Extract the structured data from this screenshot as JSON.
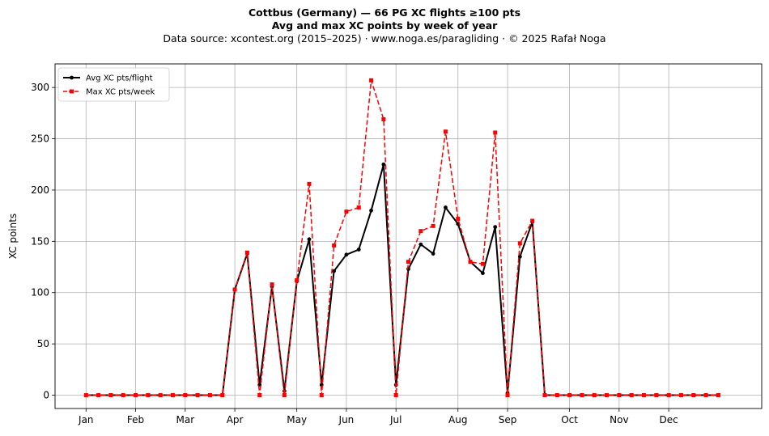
{
  "header": {
    "line1": "Cottbus (Germany)  —  66 PG XC flights ≥100 pts",
    "line2": "Avg and max XC points by week of year",
    "line3": "Data source: xcontest.org (2015–2025)  ·  www.noga.es/paragliding  ·  © 2025 Rafał Noga"
  },
  "chart_data": {
    "type": "line",
    "title": "Cottbus (Germany)  —  66 PG XC flights ≥100 pts",
    "subtitle": "Avg and max XC points by week of year",
    "xlabel": "",
    "ylabel": "XC points",
    "ylim": [
      -13,
      323
    ],
    "xlim": [
      -2.5,
      54.5
    ],
    "grid": true,
    "legend_position": "top-left",
    "x_ticks": [
      {
        "label": "Jan",
        "x": 0
      },
      {
        "label": "Feb",
        "x": 4
      },
      {
        "label": "Mar",
        "x": 8
      },
      {
        "label": "Apr",
        "x": 12
      },
      {
        "label": "May",
        "x": 17
      },
      {
        "label": "Jun",
        "x": 21
      },
      {
        "label": "Jul",
        "x": 25
      },
      {
        "label": "Aug",
        "x": 30
      },
      {
        "label": "Sep",
        "x": 34
      },
      {
        "label": "Oct",
        "x": 39
      },
      {
        "label": "Nov",
        "x": 43
      },
      {
        "label": "Dec",
        "x": 47
      }
    ],
    "y_ticks": [
      0,
      50,
      100,
      150,
      200,
      250,
      300
    ],
    "x": [
      0,
      1,
      2,
      3,
      4,
      5,
      6,
      7,
      8,
      9,
      10,
      11,
      12,
      13,
      14,
      15,
      16,
      17,
      18,
      19,
      20,
      21,
      22,
      23,
      24,
      25,
      26,
      27,
      28,
      29,
      30,
      31,
      32,
      33,
      34,
      35,
      36,
      37,
      38,
      39,
      40,
      41,
      42,
      43,
      44,
      45,
      46,
      47,
      48,
      49,
      50,
      51
    ],
    "series": [
      {
        "name": "Avg XC pts/flight",
        "color": "#000000",
        "style": "solid-circle",
        "values": [
          0,
          0,
          0,
          0,
          0,
          0,
          0,
          0,
          0,
          0,
          0,
          0,
          103,
          138,
          10,
          106,
          4,
          111,
          152,
          10,
          121,
          137,
          142,
          180,
          225,
          10,
          123,
          147,
          138,
          183,
          167,
          130,
          119,
          164,
          2,
          135,
          169,
          0,
          0,
          0,
          0,
          0,
          0,
          0,
          0,
          0,
          0,
          0,
          0,
          0,
          0,
          0
        ]
      },
      {
        "name": "Max XC pts/week",
        "color": "#ff0000",
        "style": "dashed-square",
        "values": [
          0,
          0,
          0,
          0,
          0,
          0,
          0,
          0,
          0,
          0,
          0,
          0,
          103,
          139,
          0,
          108,
          0,
          112,
          206,
          0,
          146,
          179,
          183,
          307,
          269,
          0,
          130,
          160,
          165,
          257,
          172,
          130,
          128,
          256,
          0,
          148,
          170,
          0,
          0,
          0,
          0,
          0,
          0,
          0,
          0,
          0,
          0,
          0,
          0,
          0,
          0,
          0
        ]
      }
    ]
  }
}
